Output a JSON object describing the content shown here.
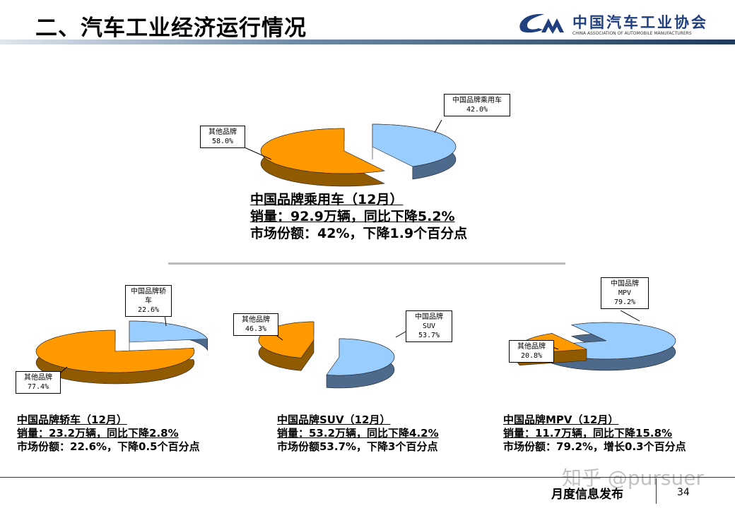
{
  "header": {
    "title": "二、汽车工业经济运行情况",
    "logo_cn": "中国汽车工业协会",
    "logo_en": "CHINA ASSOCIATION OF AUTOMOBILE MANUFACTURERS"
  },
  "colors": {
    "chinese_brand": "#99CCFF",
    "chinese_brand_side": "#4D6A8C",
    "other": "#FF9900",
    "other_side": "#8F5A00"
  },
  "chart_data": [
    {
      "type": "pie",
      "slices": [
        {
          "label": "中国品牌乘用车",
          "value": 42.0,
          "text": "42.0%"
        },
        {
          "label": "其他品牌",
          "value": 58.0,
          "text": "58.0%"
        }
      ],
      "caption": [
        "中国品牌乘用车（12月）",
        "销量：92.9万辆，同比下降5.2%",
        "市场份额：42%，下降1.9个百分点"
      ]
    },
    {
      "type": "pie",
      "slices": [
        {
          "label": "中国品牌轿车",
          "value": 22.6,
          "text": "22.6%"
        },
        {
          "label": "其他品牌",
          "value": 77.4,
          "text": "77.4%"
        }
      ],
      "caption": [
        "中国品牌轿车（12月）",
        "销量：23.2万辆，同比下降2.8%",
        "市场份额：22.6%，下降0.5个百分点"
      ]
    },
    {
      "type": "pie",
      "slices": [
        {
          "label": "中国品牌SUV",
          "value": 53.7,
          "text": "53.7%"
        },
        {
          "label": "其他品牌",
          "value": 46.3,
          "text": "46.3%"
        }
      ],
      "caption": [
        "中国品牌SUV（12月）",
        "销量：53.2万辆，同比下降4.2%",
        "市场份额53.7%，下降3个百分点"
      ]
    },
    {
      "type": "pie",
      "slices": [
        {
          "label": "中国品牌MPV",
          "value": 79.2,
          "text": "79.2%"
        },
        {
          "label": "其他品牌",
          "value": 20.8,
          "text": "20.8%"
        }
      ],
      "caption": [
        "中国品牌MPV（12月）",
        "销量：11.7万辆，同比下降15.8%",
        "市场份额：79.2%，增长0.3个百分点"
      ]
    }
  ],
  "footer": {
    "label": "月度信息发布",
    "page": "34",
    "watermark": "知乎 @pursuer"
  }
}
